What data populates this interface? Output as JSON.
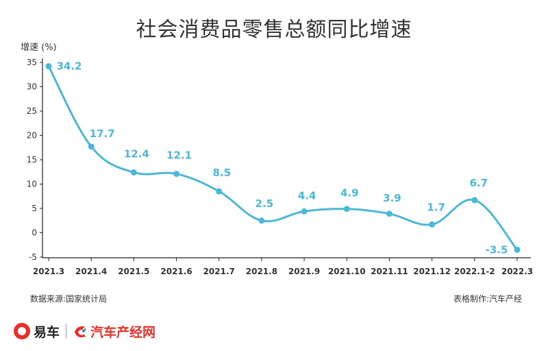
{
  "title": "社会消费品零售总额同比增速",
  "footer": {
    "source": "数据来源:国家统计局",
    "maker": "表格制作:汽车产经"
  },
  "brand": {
    "logo1_text": "易车",
    "logo2_text": "汽车产经网"
  },
  "colors": {
    "line": "#4ab8d6",
    "label": "#4ab8d6",
    "logo_red": "#e7302a"
  },
  "chart_data": {
    "type": "line",
    "categories": [
      "2021.3",
      "2021.4",
      "2021.5",
      "2021.6",
      "2021.7",
      "2021.8",
      "2021.9",
      "2021.10",
      "2021.11",
      "2021.12",
      "2022.1-2",
      "2022.3"
    ],
    "series": [
      {
        "values": [
          34.2,
          17.7,
          12.4,
          12.1,
          8.5,
          2.5,
          4.4,
          4.9,
          3.9,
          1.7,
          6.7,
          -3.5
        ]
      }
    ],
    "data_labels": [
      "34.2",
      "17.7",
      "12.4",
      "12.1",
      "8.5",
      "2.5",
      "4.4",
      "4.9",
      "3.9",
      "1.7",
      "6.7",
      "-3.5"
    ],
    "ylabel": "增速 (%)",
    "xlabel": "",
    "ylim": [
      -5,
      35
    ],
    "yticks": [
      "-5",
      "0",
      "5",
      "10",
      "15",
      "20",
      "25",
      "30",
      "35"
    ],
    "grid": false,
    "smooth": true,
    "legend": "none"
  }
}
